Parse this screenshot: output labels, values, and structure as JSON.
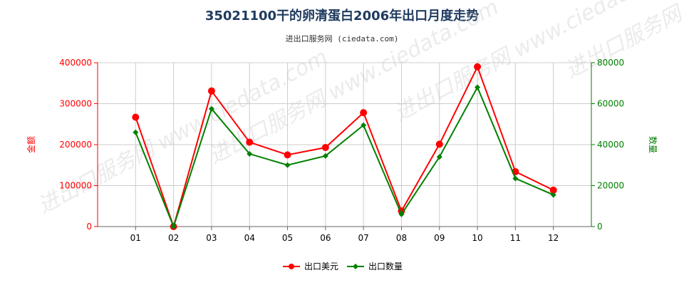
{
  "chart_data": {
    "type": "line",
    "title": "35021100干的卵清蛋白2006年出口月度走势",
    "subtitle": "进出口服务网 (ciedata.com)",
    "watermark": "进出口服务网 www.ciedata.com",
    "categories": [
      "01",
      "02",
      "03",
      "04",
      "05",
      "06",
      "07",
      "08",
      "09",
      "10",
      "11",
      "12"
    ],
    "ylabel_left": "金额",
    "ylabel_right": "数量",
    "ylim_left": [
      0,
      400000
    ],
    "ylim_right": [
      0,
      80000
    ],
    "yticks_left": [
      "0",
      "100000",
      "200000",
      "300000",
      "400000"
    ],
    "yticks_right": [
      "0",
      "20000",
      "40000",
      "60000",
      "80000"
    ],
    "grid": true,
    "legend_position": "bottom-center",
    "series": [
      {
        "name": "出口美元",
        "axis": "left",
        "color": "#ff0000",
        "values": [
          267000,
          0,
          331000,
          206000,
          175000,
          193000,
          278000,
          38000,
          201000,
          390000,
          134000,
          89000
        ]
      },
      {
        "name": "出口数量",
        "axis": "right",
        "color": "#008000",
        "values": [
          46000,
          0,
          57500,
          35500,
          30000,
          34500,
          49500,
          6000,
          34000,
          68000,
          23500,
          15500
        ]
      }
    ],
    "colors": {
      "left_axis": "#ff0000",
      "right_axis": "#008000",
      "grid": "#cccccc",
      "title": "#1f3a5f"
    }
  }
}
